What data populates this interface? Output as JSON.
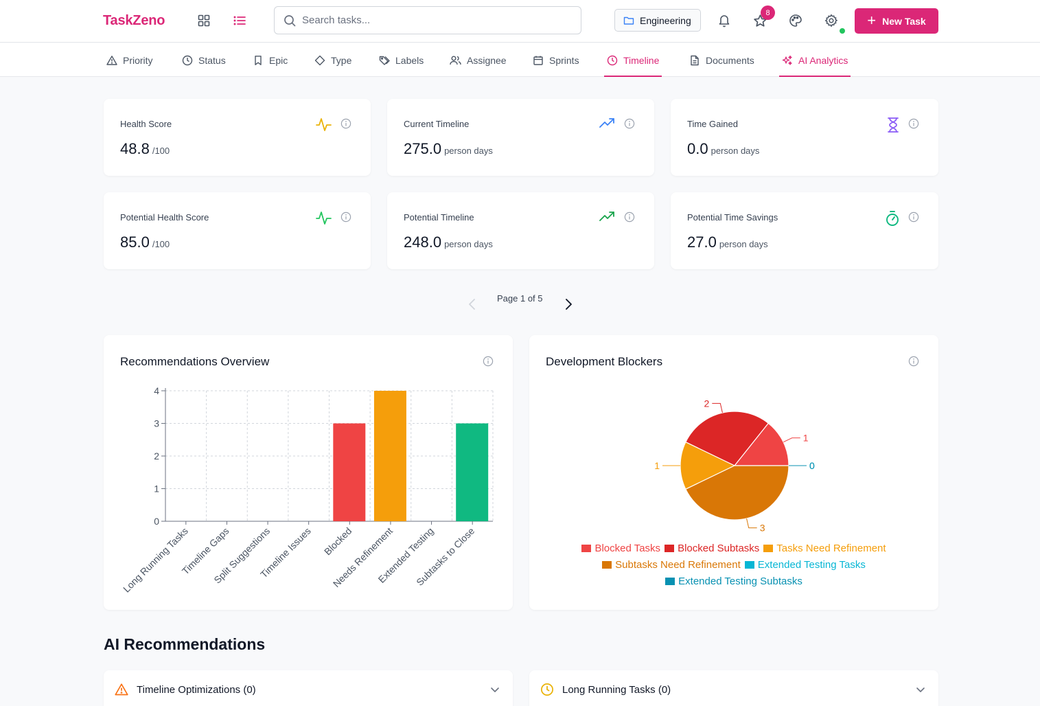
{
  "app": {
    "brand": "TaskZeno"
  },
  "header": {
    "search_placeholder": "Search tasks...",
    "project": "Engineering",
    "notification_count": "8",
    "new_task_label": "New Task"
  },
  "tabs": [
    {
      "label": "Priority",
      "icon": "warning-triangle-icon"
    },
    {
      "label": "Status",
      "icon": "clock-icon"
    },
    {
      "label": "Epic",
      "icon": "bookmark-icon"
    },
    {
      "label": "Type",
      "icon": "diamond-icon"
    },
    {
      "label": "Labels",
      "icon": "tags-icon"
    },
    {
      "label": "Assignee",
      "icon": "users-icon"
    },
    {
      "label": "Sprints",
      "icon": "calendar-icon"
    },
    {
      "label": "Timeline",
      "icon": "clock-icon",
      "active": true
    },
    {
      "label": "Documents",
      "icon": "document-icon"
    },
    {
      "label": "AI Analytics",
      "icon": "sparkles-icon",
      "active": true
    }
  ],
  "metrics": [
    {
      "label": "Health Score",
      "value": "48.8",
      "unit": "/100",
      "icon": "activity-icon",
      "color": "#eab308"
    },
    {
      "label": "Current Timeline",
      "value": "275.0",
      "unit": "person days",
      "icon": "trending-up-icon",
      "color": "#3b82f6"
    },
    {
      "label": "Time Gained",
      "value": "0.0",
      "unit": "person days",
      "icon": "hourglass-icon",
      "color": "#8b5cf6"
    },
    {
      "label": "Potential Health Score",
      "value": "85.0",
      "unit": "/100",
      "icon": "activity-icon",
      "color": "#22c55e"
    },
    {
      "label": "Potential Timeline",
      "value": "248.0",
      "unit": "person days",
      "icon": "trending-up-icon",
      "color": "#16a34a"
    },
    {
      "label": "Potential Time Savings",
      "value": "27.0",
      "unit": "person days",
      "icon": "timer-icon",
      "color": "#10b981"
    }
  ],
  "pagination": {
    "text": "Page 1 of 5"
  },
  "recommendations_chart": {
    "title": "Recommendations Overview"
  },
  "blockers_chart": {
    "title": "Development Blockers"
  },
  "chart_data": [
    {
      "type": "bar",
      "title": "Recommendations Overview",
      "categories": [
        "Long Running Tasks",
        "Timeline Gaps",
        "Split Suggestions",
        "Timeline Issues",
        "Blocked",
        "Needs Refinement",
        "Extended Testing",
        "Subtasks to Close"
      ],
      "values": [
        0,
        0,
        0,
        0,
        3,
        4,
        0,
        3
      ],
      "colors": [
        "#3b82f6",
        "#6366f1",
        "#8b5cf6",
        "#ec4899",
        "#ef4444",
        "#f59e0b",
        "#06b6d4",
        "#10b981"
      ],
      "ylim": [
        0,
        4
      ],
      "yticks": [
        "0",
        "1",
        "2",
        "3",
        "4"
      ],
      "grid": true
    },
    {
      "type": "pie",
      "title": "Development Blockers",
      "categories": [
        "Blocked Tasks",
        "Blocked Subtasks",
        "Tasks Need Refinement",
        "Subtasks Need Refinement",
        "Extended Testing Tasks",
        "Extended Testing Subtasks"
      ],
      "values": [
        1,
        2,
        1,
        3,
        0,
        0
      ],
      "colors": [
        "#ef4444",
        "#dc2626",
        "#f59e0b",
        "#d97706",
        "#06b6d4",
        "#0891b2"
      ],
      "legend": "bottom"
    }
  ],
  "ai_recommendations": {
    "title": "AI Recommendations",
    "sections": [
      {
        "label": "Timeline Optimizations (0)",
        "icon": "warning-triangle-icon",
        "color": "#f97316"
      },
      {
        "label": "Long Running Tasks (0)",
        "icon": "clock-icon",
        "color": "#eab308"
      }
    ]
  }
}
